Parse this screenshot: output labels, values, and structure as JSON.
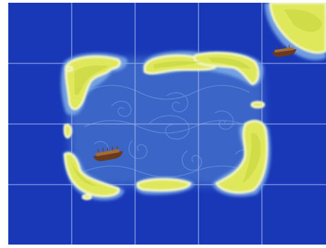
{
  "board": {
    "grid": {
      "columns": 5,
      "rows": 4
    },
    "colors": {
      "deep_water": "#1838b8",
      "lagoon_water": "#3a66c8",
      "shallow_glow": "#7aa8e6",
      "grid_line": "#9fb0e8",
      "island_fill": "#dfe85a",
      "island_edge": "#f6f8c8",
      "island_inner": "#c2d43c",
      "boat_hull": "#6b3a1c",
      "boat_deck": "#a06a3a"
    },
    "islands": [
      {
        "name": "island-top-left"
      },
      {
        "name": "island-top-middle"
      },
      {
        "name": "island-top-right"
      },
      {
        "name": "island-left-middle"
      },
      {
        "name": "island-left-lower"
      },
      {
        "name": "island-bottom-middle"
      },
      {
        "name": "island-right"
      },
      {
        "name": "island-corner-land"
      }
    ],
    "boats": [
      {
        "name": "boat-top-right",
        "icon": "rowboat-icon"
      },
      {
        "name": "boat-left",
        "icon": "rowboat-icon"
      }
    ],
    "decoration": "swirl-pattern"
  }
}
